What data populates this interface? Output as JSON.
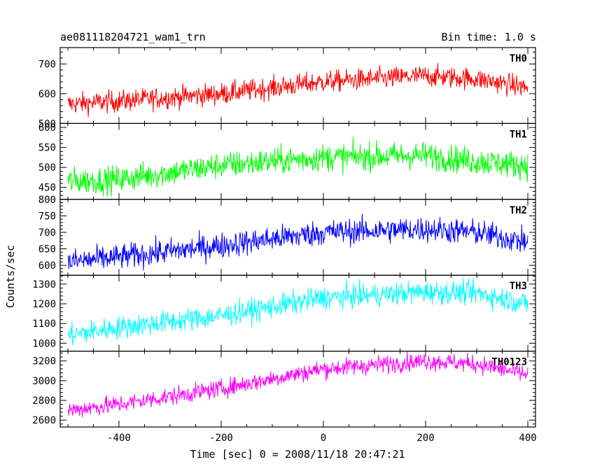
{
  "header": {
    "title": "ae081118204721_wam1_trn",
    "bin_time": "Bin time: 1.0 s"
  },
  "chart_data": {
    "type": "line",
    "title": "ae081118204721_wam1_trn",
    "subtitle": "Bin time: 1.0 s",
    "xlabel": "Time [sec] 0 = 2008/11/18 20:47:21",
    "ylabel": "Counts/sec",
    "xlim": [
      -515,
      415
    ],
    "x_ticks": [
      -400,
      -200,
      0,
      200,
      400
    ],
    "x_range": [
      -500,
      400
    ],
    "grid": false,
    "panels": [
      {
        "name": "TH0",
        "color": "#ff0000",
        "ylim": [
          500,
          755
        ],
        "y_ticks": [
          500,
          600,
          700
        ],
        "trend": [
          [
            -500,
            565
          ],
          [
            -400,
            575
          ],
          [
            -200,
            600
          ],
          [
            0,
            640
          ],
          [
            200,
            660
          ],
          [
            300,
            650
          ],
          [
            400,
            620
          ]
        ],
        "noise": 30
      },
      {
        "name": "TH1",
        "color": "#00ff00",
        "ylim": [
          420,
          610
        ],
        "y_ticks": [
          450,
          500,
          550,
          600
        ],
        "trend": [
          [
            -500,
            465
          ],
          [
            -400,
            470
          ],
          [
            -200,
            505
          ],
          [
            0,
            525
          ],
          [
            200,
            530
          ],
          [
            300,
            515
          ],
          [
            400,
            505
          ]
        ],
        "noise": 28
      },
      {
        "name": "TH2",
        "color": "#0000ff",
        "ylim": [
          570,
          800
        ],
        "y_ticks": [
          600,
          650,
          700,
          750,
          800
        ],
        "trend": [
          [
            -500,
            610
          ],
          [
            -400,
            625
          ],
          [
            -200,
            660
          ],
          [
            0,
            700
          ],
          [
            200,
            710
          ],
          [
            300,
            700
          ],
          [
            400,
            670
          ]
        ],
        "noise": 32
      },
      {
        "name": "TH3",
        "color": "#00ffff",
        "ylim": [
          960,
          1345
        ],
        "y_ticks": [
          1000,
          1100,
          1200,
          1300
        ],
        "trend": [
          [
            -500,
            1040
          ],
          [
            -400,
            1080
          ],
          [
            -200,
            1140
          ],
          [
            0,
            1230
          ],
          [
            200,
            1260
          ],
          [
            300,
            1255
          ],
          [
            400,
            1200
          ]
        ],
        "noise": 48
      },
      {
        "name": "TH0123",
        "color": "#ff00ff",
        "ylim": [
          2530,
          3300
        ],
        "y_ticks": [
          2600,
          2800,
          3000,
          3200
        ],
        "trend": [
          [
            -500,
            2700
          ],
          [
            -400,
            2760
          ],
          [
            -200,
            2920
          ],
          [
            0,
            3120
          ],
          [
            200,
            3200
          ],
          [
            300,
            3170
          ],
          [
            400,
            3060
          ]
        ],
        "noise": 75
      }
    ]
  }
}
